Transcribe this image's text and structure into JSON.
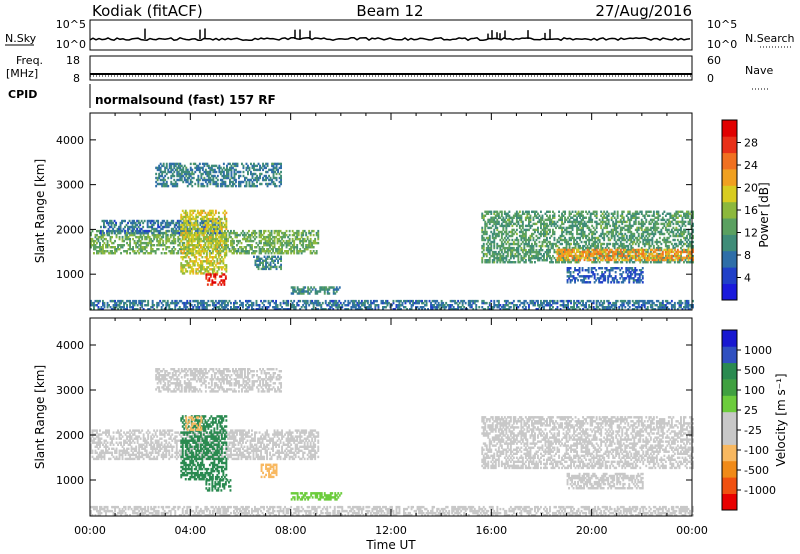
{
  "header": {
    "station": "Kodiak (fitACF)",
    "beam": "Beam 12",
    "date": "27/Aug/2016"
  },
  "strips": {
    "nsky_label": "N.Sky",
    "nsky_ticks": [
      "10^5",
      "10^0"
    ],
    "nsearch_label": "N.Search",
    "nsearch_ticks": [
      "10^5",
      "10^0"
    ],
    "freq_label": "Freq.",
    "freq_unit": "[MHz]",
    "freq_ticks": [
      "18",
      "8"
    ],
    "nave_label": "Nave",
    "nave_ticks": [
      "60",
      "0"
    ],
    "cpid_label": "CPID",
    "cpid_text": "normalsound (fast) 157 RF"
  },
  "colors": {
    "power": [
      "#1a1adc",
      "#2040c8",
      "#2e6ea8",
      "#3f8c78",
      "#5aa060",
      "#8cb83c",
      "#d8cc20",
      "#f0a020",
      "#f07020",
      "#e83018",
      "#e00000"
    ],
    "velocity": [
      "#e80000",
      "#f05010",
      "#f08a18",
      "#f8b860",
      "#c8c8c8",
      "#c8c8c8",
      "#6ccc3c",
      "#40a040",
      "#2a8a50",
      "#3050c0",
      "#1818d0"
    ]
  },
  "chart_data": [
    {
      "type": "heatmap",
      "panel": "power",
      "xlabel": "Time UT",
      "ylabel": "Slant Range [km]",
      "xlim": [
        0,
        24
      ],
      "ylim": [
        200,
        4600
      ],
      "x_ticks": [
        "00:00",
        "04:00",
        "08:00",
        "12:00",
        "16:00",
        "20:00",
        "00:00"
      ],
      "y_ticks": [
        1000,
        2000,
        3000,
        4000
      ],
      "colorbar": {
        "label": "Power [dB]",
        "range": [
          0,
          32
        ],
        "ticks": [
          4,
          8,
          12,
          16,
          20,
          24,
          28
        ]
      },
      "echo_regions": [
        {
          "t0": 0.0,
          "t1": 9.1,
          "r0": 1450,
          "r1": 1950,
          "value": 14
        },
        {
          "t0": 0.4,
          "t1": 5.2,
          "r0": 1900,
          "r1": 2200,
          "value": 8
        },
        {
          "t0": 2.6,
          "t1": 7.6,
          "r0": 2950,
          "r1": 3450,
          "value": 9
        },
        {
          "t0": 3.6,
          "t1": 5.4,
          "r0": 1000,
          "r1": 2400,
          "value": 18
        },
        {
          "t0": 4.6,
          "t1": 5.4,
          "r0": 750,
          "r1": 1000,
          "value": 28
        },
        {
          "t0": 6.5,
          "t1": 7.6,
          "r0": 1100,
          "r1": 1400,
          "value": 10
        },
        {
          "t0": 8.0,
          "t1": 10.0,
          "r0": 550,
          "r1": 700,
          "value": 10
        },
        {
          "t0": 0.0,
          "t1": 24.0,
          "r0": 200,
          "r1": 400,
          "value": 8
        },
        {
          "t0": 15.6,
          "t1": 24.0,
          "r0": 1250,
          "r1": 2400,
          "value": 12
        },
        {
          "t0": 18.6,
          "t1": 24.0,
          "r0": 1300,
          "r1": 1550,
          "value": 22
        },
        {
          "t0": 19.0,
          "t1": 22.0,
          "r0": 800,
          "r1": 1150,
          "value": 6
        }
      ]
    },
    {
      "type": "heatmap",
      "panel": "velocity",
      "xlabel": "Time UT",
      "ylabel": "Slant Range [km]",
      "xlim": [
        0,
        24
      ],
      "ylim": [
        200,
        4600
      ],
      "x_ticks": [
        "00:00",
        "04:00",
        "08:00",
        "12:00",
        "16:00",
        "20:00",
        "00:00"
      ],
      "y_ticks": [
        1000,
        2000,
        3000,
        4000
      ],
      "colorbar": {
        "label": "Velocity [m s⁻¹]",
        "ticks": [
          -1000,
          -500,
          -100,
          -25,
          25,
          100,
          500,
          1000
        ]
      },
      "echo_regions": [
        {
          "t0": 0.0,
          "t1": 9.1,
          "r0": 1450,
          "r1": 2100,
          "value": 0
        },
        {
          "t0": 2.6,
          "t1": 7.6,
          "r0": 2950,
          "r1": 3450,
          "value": 0
        },
        {
          "t0": 3.6,
          "t1": 5.4,
          "r0": 1000,
          "r1": 2400,
          "value": 300
        },
        {
          "t0": 3.8,
          "t1": 4.4,
          "r0": 2100,
          "r1": 2400,
          "value": -300
        },
        {
          "t0": 4.6,
          "t1": 5.6,
          "r0": 750,
          "r1": 1000,
          "value": 120
        },
        {
          "t0": 6.8,
          "t1": 7.4,
          "r0": 1050,
          "r1": 1350,
          "value": -200
        },
        {
          "t0": 8.0,
          "t1": 10.0,
          "r0": 550,
          "r1": 700,
          "value": 60
        },
        {
          "t0": 0.0,
          "t1": 24.0,
          "r0": 200,
          "r1": 400,
          "value": -40
        },
        {
          "t0": 15.6,
          "t1": 24.0,
          "r0": 1250,
          "r1": 2400,
          "value": 0
        },
        {
          "t0": 19.0,
          "t1": 22.0,
          "r0": 800,
          "r1": 1150,
          "value": 0
        }
      ]
    }
  ]
}
